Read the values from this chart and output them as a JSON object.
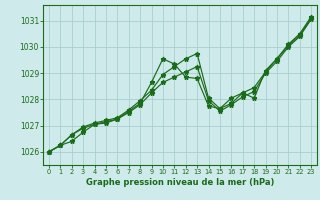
{
  "xlabel": "Graphe pression niveau de la mer (hPa)",
  "background_color": "#ceeaea",
  "grid_color": "#aacece",
  "line_color": "#1a6b1a",
  "xlim": [
    -0.5,
    23.5
  ],
  "ylim": [
    1025.5,
    1031.6
  ],
  "yticks": [
    1026,
    1027,
    1028,
    1029,
    1030,
    1031
  ],
  "xticks": [
    0,
    1,
    2,
    3,
    4,
    5,
    6,
    7,
    8,
    9,
    10,
    11,
    12,
    13,
    14,
    15,
    16,
    17,
    18,
    19,
    20,
    21,
    22,
    23
  ],
  "line1_y": [
    1026.0,
    1026.25,
    1026.4,
    1026.75,
    1027.05,
    1027.1,
    1027.25,
    1027.55,
    1027.85,
    1028.65,
    1029.55,
    1029.35,
    1028.85,
    1028.8,
    1027.75,
    1027.65,
    1028.05,
    1028.25,
    1028.05,
    1029.1,
    1029.55,
    1030.1,
    1030.5,
    1031.15
  ],
  "line2_y": [
    1026.0,
    1026.25,
    1026.65,
    1026.95,
    1027.1,
    1027.2,
    1027.3,
    1027.6,
    1027.95,
    1028.35,
    1028.95,
    1029.25,
    1029.55,
    1029.75,
    1028.05,
    1027.65,
    1027.85,
    1028.25,
    1028.45,
    1029.05,
    1029.55,
    1030.05,
    1030.45,
    1031.1
  ],
  "line3_y": [
    1026.0,
    1026.25,
    1026.65,
    1026.9,
    1027.05,
    1027.15,
    1027.25,
    1027.5,
    1027.8,
    1028.25,
    1028.65,
    1028.85,
    1029.05,
    1029.25,
    1027.95,
    1027.55,
    1027.8,
    1028.1,
    1028.3,
    1029.0,
    1029.45,
    1030.0,
    1030.4,
    1031.05
  ]
}
